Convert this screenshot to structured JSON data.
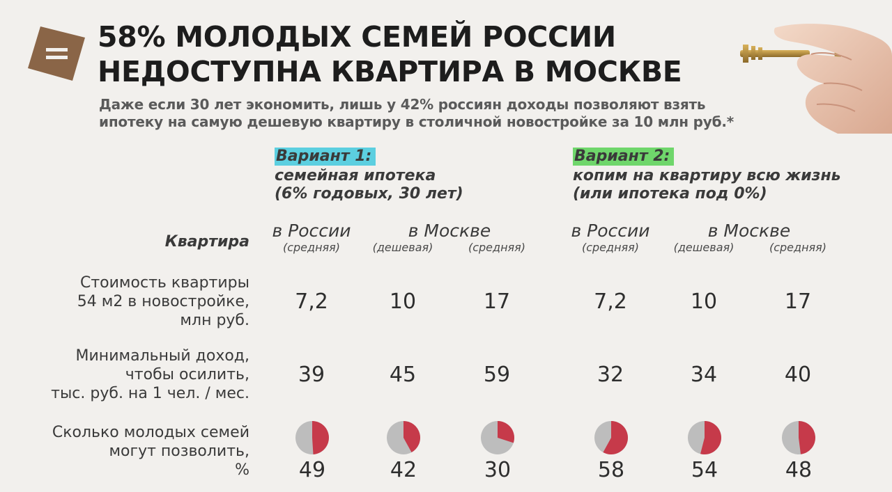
{
  "header": {
    "title_lines": [
      "58% МОЛОДЫХ СЕМЕЙ РОССИИ",
      "НЕДОСТУПНА КВАРТИРА В МОСКВЕ"
    ],
    "subtitle_lines": [
      "Даже если 30 лет экономить, лишь у 42% россиян доходы позволяют взять",
      "ипотеку на самую дешевую квартиру в столичной новостройке за 10 млн руб.*"
    ]
  },
  "variants": [
    {
      "tag": "Вариант 1:",
      "desc_lines": [
        "семейная ипотека",
        "(6% годовых, 30 лет)"
      ],
      "tag_color": "#5ccfe0"
    },
    {
      "tag": "Вариант 2:",
      "desc_lines": [
        "копим на квартиру всю жизнь",
        "(или ипотека под 0%)"
      ],
      "tag_color": "#6fd66b"
    }
  ],
  "row_labels": {
    "header": "Квартира",
    "cost": [
      "Стоимость квартиры",
      "54 м2 в новостройке,",
      "млн руб."
    ],
    "income": [
      "Минимальный доход,",
      "чтобы осилить,",
      "тыс. руб. на 1 чел. / мес."
    ],
    "share": [
      "Сколько молодых семей",
      "могут позволить,",
      "%"
    ]
  },
  "col_groups": {
    "russia": "в России",
    "moscow": "в Москве",
    "avg": "(средняя)",
    "cheap": "(дешевая)"
  },
  "chart_data": {
    "type": "table",
    "columns": [
      {
        "variant": "Вариант 1",
        "region": "в России",
        "kind": "(средняя)"
      },
      {
        "variant": "Вариант 1",
        "region": "в Москве",
        "kind": "(дешевая)"
      },
      {
        "variant": "Вариант 1",
        "region": "в Москве",
        "kind": "(средняя)"
      },
      {
        "variant": "Вариант 2",
        "region": "в России",
        "kind": "(средняя)"
      },
      {
        "variant": "Вариант 2",
        "region": "в Москве",
        "kind": "(дешевая)"
      },
      {
        "variant": "Вариант 2",
        "region": "в Москве",
        "kind": "(средняя)"
      }
    ],
    "cost_display": [
      "7,2",
      "10",
      "17",
      "7,2",
      "10",
      "17"
    ],
    "cost_mln_rub": [
      7.2,
      10,
      17,
      7.2,
      10,
      17
    ],
    "income_thousand_rub": [
      "39",
      "45",
      "59",
      "32",
      "34",
      "40"
    ],
    "share_percent": [
      49,
      42,
      30,
      58,
      54,
      48
    ],
    "pie_colors": {
      "share": "#c63a4a",
      "rest": "#bdbdbd"
    }
  }
}
